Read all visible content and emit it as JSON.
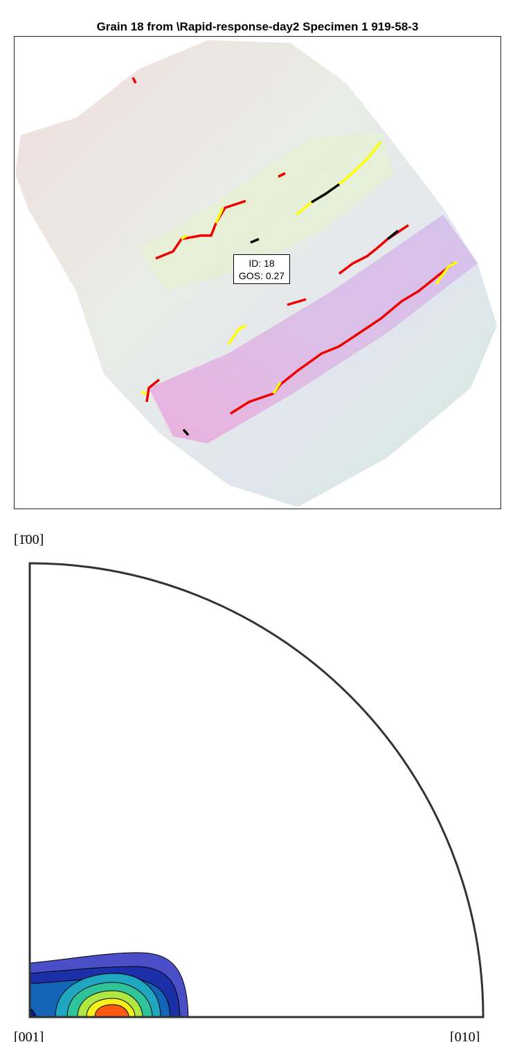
{
  "header": {
    "title": "Grain 18 from \\Rapid-response-day2 Specimen 1 919-58-3"
  },
  "map": {
    "annotation": [
      "ID: 18",
      "GOS: 0.27"
    ]
  },
  "pole_figure": {
    "top_label": "[1̄00]",
    "bottom_left_label": "[001]",
    "bottom_right_label": "[010]"
  }
}
